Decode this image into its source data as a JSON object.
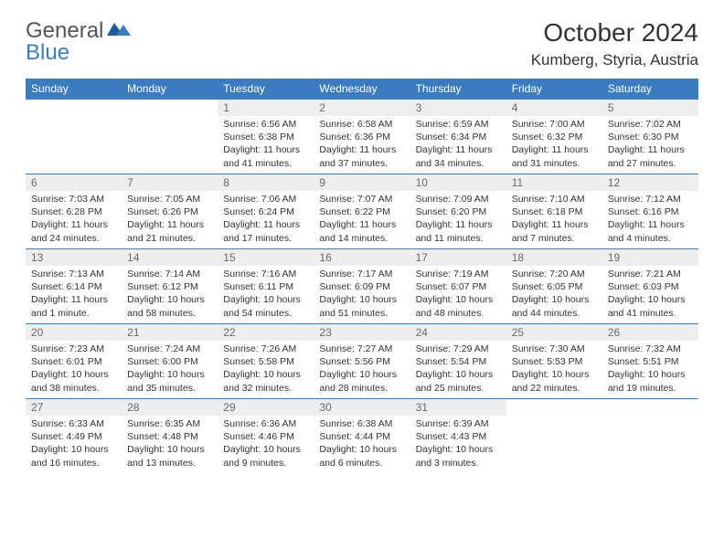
{
  "brand": {
    "name1": "General",
    "name2": "Blue"
  },
  "title": "October 2024",
  "location": "Kumberg, Styria, Austria",
  "colors": {
    "header_bg": "#3a7cbf",
    "header_text": "#ffffff",
    "daynum_bg": "#eeeeee",
    "daynum_text": "#6a6a6a",
    "body_text": "#333333",
    "row_border": "#3a7cbf"
  },
  "weekdays": [
    "Sunday",
    "Monday",
    "Tuesday",
    "Wednesday",
    "Thursday",
    "Friday",
    "Saturday"
  ],
  "weeks": [
    [
      null,
      null,
      {
        "n": "1",
        "sr": "6:56 AM",
        "ss": "6:38 PM",
        "dl": "11 hours and 41 minutes."
      },
      {
        "n": "2",
        "sr": "6:58 AM",
        "ss": "6:36 PM",
        "dl": "11 hours and 37 minutes."
      },
      {
        "n": "3",
        "sr": "6:59 AM",
        "ss": "6:34 PM",
        "dl": "11 hours and 34 minutes."
      },
      {
        "n": "4",
        "sr": "7:00 AM",
        "ss": "6:32 PM",
        "dl": "11 hours and 31 minutes."
      },
      {
        "n": "5",
        "sr": "7:02 AM",
        "ss": "6:30 PM",
        "dl": "11 hours and 27 minutes."
      }
    ],
    [
      {
        "n": "6",
        "sr": "7:03 AM",
        "ss": "6:28 PM",
        "dl": "11 hours and 24 minutes."
      },
      {
        "n": "7",
        "sr": "7:05 AM",
        "ss": "6:26 PM",
        "dl": "11 hours and 21 minutes."
      },
      {
        "n": "8",
        "sr": "7:06 AM",
        "ss": "6:24 PM",
        "dl": "11 hours and 17 minutes."
      },
      {
        "n": "9",
        "sr": "7:07 AM",
        "ss": "6:22 PM",
        "dl": "11 hours and 14 minutes."
      },
      {
        "n": "10",
        "sr": "7:09 AM",
        "ss": "6:20 PM",
        "dl": "11 hours and 11 minutes."
      },
      {
        "n": "11",
        "sr": "7:10 AM",
        "ss": "6:18 PM",
        "dl": "11 hours and 7 minutes."
      },
      {
        "n": "12",
        "sr": "7:12 AM",
        "ss": "6:16 PM",
        "dl": "11 hours and 4 minutes."
      }
    ],
    [
      {
        "n": "13",
        "sr": "7:13 AM",
        "ss": "6:14 PM",
        "dl": "11 hours and 1 minute."
      },
      {
        "n": "14",
        "sr": "7:14 AM",
        "ss": "6:12 PM",
        "dl": "10 hours and 58 minutes."
      },
      {
        "n": "15",
        "sr": "7:16 AM",
        "ss": "6:11 PM",
        "dl": "10 hours and 54 minutes."
      },
      {
        "n": "16",
        "sr": "7:17 AM",
        "ss": "6:09 PM",
        "dl": "10 hours and 51 minutes."
      },
      {
        "n": "17",
        "sr": "7:19 AM",
        "ss": "6:07 PM",
        "dl": "10 hours and 48 minutes."
      },
      {
        "n": "18",
        "sr": "7:20 AM",
        "ss": "6:05 PM",
        "dl": "10 hours and 44 minutes."
      },
      {
        "n": "19",
        "sr": "7:21 AM",
        "ss": "6:03 PM",
        "dl": "10 hours and 41 minutes."
      }
    ],
    [
      {
        "n": "20",
        "sr": "7:23 AM",
        "ss": "6:01 PM",
        "dl": "10 hours and 38 minutes."
      },
      {
        "n": "21",
        "sr": "7:24 AM",
        "ss": "6:00 PM",
        "dl": "10 hours and 35 minutes."
      },
      {
        "n": "22",
        "sr": "7:26 AM",
        "ss": "5:58 PM",
        "dl": "10 hours and 32 minutes."
      },
      {
        "n": "23",
        "sr": "7:27 AM",
        "ss": "5:56 PM",
        "dl": "10 hours and 28 minutes."
      },
      {
        "n": "24",
        "sr": "7:29 AM",
        "ss": "5:54 PM",
        "dl": "10 hours and 25 minutes."
      },
      {
        "n": "25",
        "sr": "7:30 AM",
        "ss": "5:53 PM",
        "dl": "10 hours and 22 minutes."
      },
      {
        "n": "26",
        "sr": "7:32 AM",
        "ss": "5:51 PM",
        "dl": "10 hours and 19 minutes."
      }
    ],
    [
      {
        "n": "27",
        "sr": "6:33 AM",
        "ss": "4:49 PM",
        "dl": "10 hours and 16 minutes."
      },
      {
        "n": "28",
        "sr": "6:35 AM",
        "ss": "4:48 PM",
        "dl": "10 hours and 13 minutes."
      },
      {
        "n": "29",
        "sr": "6:36 AM",
        "ss": "4:46 PM",
        "dl": "10 hours and 9 minutes."
      },
      {
        "n": "30",
        "sr": "6:38 AM",
        "ss": "4:44 PM",
        "dl": "10 hours and 6 minutes."
      },
      {
        "n": "31",
        "sr": "6:39 AM",
        "ss": "4:43 PM",
        "dl": "10 hours and 3 minutes."
      },
      null,
      null
    ]
  ],
  "labels": {
    "sunrise": "Sunrise:",
    "sunset": "Sunset:",
    "daylight": "Daylight:"
  }
}
